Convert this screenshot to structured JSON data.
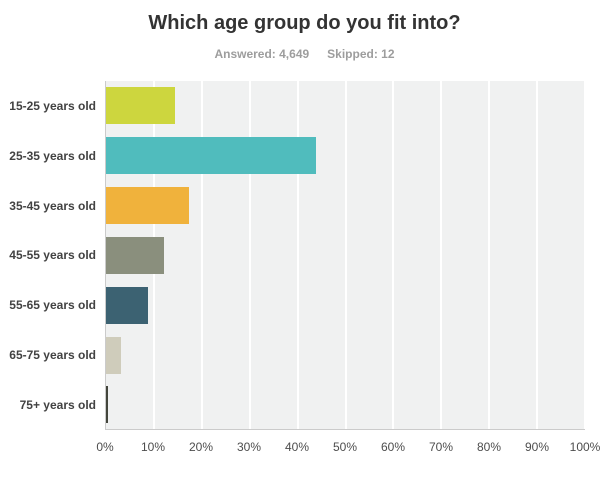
{
  "header": {
    "title": "Which age group do you fit into?",
    "answered_label": "Answered: 4,649",
    "skipped_label": "Skipped: 12"
  },
  "chart_data": {
    "type": "bar",
    "orientation": "horizontal",
    "title": "Which age group do you fit into?",
    "answered_count": "4,649",
    "skipped_count": "12",
    "categories": [
      "15-25 years old",
      "25-35 years old",
      "35-45 years old",
      "45-55 years old",
      "55-65 years old",
      "65-75 years old",
      "75+ years old"
    ],
    "values": [
      14.3,
      43.8,
      17.2,
      12.1,
      8.7,
      3.1,
      0.4
    ],
    "value_unit": "%",
    "bar_colors": [
      "#cdd63e",
      "#50bcbd",
      "#f0b23c",
      "#8a8f7d",
      "#3c6272",
      "#cfccbb",
      "#43453c"
    ],
    "x_ticks": [
      "0%",
      "10%",
      "20%",
      "30%",
      "40%",
      "50%",
      "60%",
      "70%",
      "80%",
      "90%",
      "100%"
    ],
    "x_tick_values": [
      0,
      10,
      20,
      30,
      40,
      50,
      60,
      70,
      80,
      90,
      100
    ],
    "xlim": [
      0,
      100
    ],
    "grid": true,
    "legend": false,
    "plot_bg_color": "#f0f1f1",
    "gridline_color": "#ffffff",
    "axis_line_color": "#cbcbcb"
  }
}
